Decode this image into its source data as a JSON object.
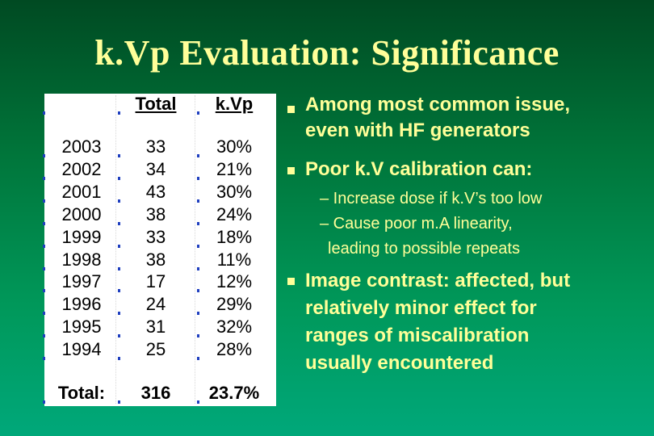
{
  "slide": {
    "title": "k.Vp Evaluation: Significance"
  },
  "table": {
    "headers": [
      "",
      "Total",
      "k.Vp"
    ],
    "rows": [
      [
        "2003",
        "33",
        "30%"
      ],
      [
        "2002",
        "34",
        "21%"
      ],
      [
        "2001",
        "43",
        "30%"
      ],
      [
        "2000",
        "38",
        "24%"
      ],
      [
        "1999",
        "33",
        "18%"
      ],
      [
        "1998",
        "38",
        "11%"
      ],
      [
        "1997",
        "17",
        "12%"
      ],
      [
        "1996",
        "24",
        "29%"
      ],
      [
        "1995",
        "31",
        "32%"
      ],
      [
        "1994",
        "25",
        "28%"
      ]
    ],
    "totals": [
      "Total:",
      "316",
      "23.7%"
    ]
  },
  "bullets": [
    {
      "text": "Among most common issue, even with HF generators",
      "lines": [
        "Among most common issue,",
        "even with HF generators"
      ]
    },
    {
      "text": "Poor k.V calibration can:",
      "lines": [
        "Poor k.V calibration can:"
      ],
      "sub": [
        {
          "lines": [
            "– Increase dose if k.V’s too low"
          ]
        },
        {
          "lines": [
            "– Cause poor m.A linearity,",
            "leading to possible repeats"
          ]
        }
      ]
    },
    {
      "text": "Image contrast: affected, but relatively minor effect for ranges of miscalibration usually encountered",
      "lines": [
        "Image contrast: affected, but",
        "relatively minor effect for",
        "ranges of miscalibration",
        "usually encountered"
      ]
    }
  ],
  "colors": {
    "text": "#ffff99",
    "tick": "#1f3fbf"
  }
}
